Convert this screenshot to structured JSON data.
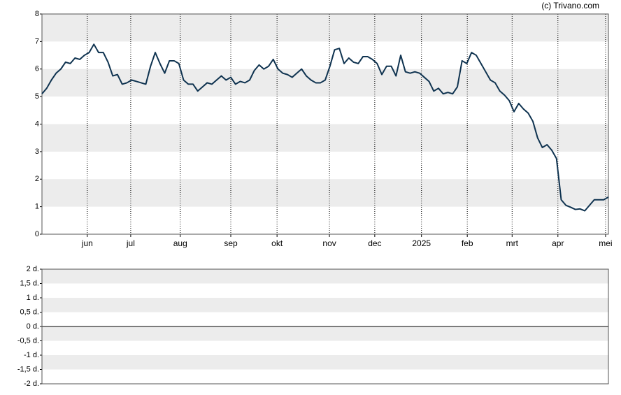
{
  "chart_data": [
    {
      "type": "line",
      "credit": "(c) Trivano.com",
      "xlim": [
        0,
        120
      ],
      "xticks": [
        {
          "value": 9.6,
          "label": "jun"
        },
        {
          "value": 18.8,
          "label": "jul"
        },
        {
          "value": 29.3,
          "label": "aug"
        },
        {
          "value": 40,
          "label": "sep"
        },
        {
          "value": 49.8,
          "label": "okt"
        },
        {
          "value": 60.9,
          "label": "nov"
        },
        {
          "value": 70.5,
          "label": "dec"
        },
        {
          "value": 80.4,
          "label": "2025"
        },
        {
          "value": 90.1,
          "label": "feb"
        },
        {
          "value": 99.6,
          "label": "mrt"
        },
        {
          "value": 109.3,
          "label": "apr"
        },
        {
          "value": 119.4,
          "label": "mei"
        }
      ],
      "ylim": [
        0,
        8
      ],
      "yticks": [
        0,
        1,
        2,
        3,
        4,
        5,
        6,
        7,
        8
      ],
      "series": [
        {
          "color": "#0f3350",
          "values": [
            5.1,
            5.3,
            5.6,
            5.85,
            6.0,
            6.25,
            6.2,
            6.4,
            6.35,
            6.5,
            6.6,
            6.9,
            6.6,
            6.6,
            6.25,
            5.75,
            5.8,
            5.45,
            5.5,
            5.6,
            5.55,
            5.5,
            5.45,
            6.1,
            6.6,
            6.2,
            5.85,
            6.3,
            6.3,
            6.2,
            5.6,
            5.45,
            5.45,
            5.2,
            5.35,
            5.5,
            5.45,
            5.6,
            5.75,
            5.6,
            5.7,
            5.45,
            5.55,
            5.5,
            5.6,
            5.95,
            6.15,
            6.0,
            6.1,
            6.35,
            6.0,
            5.85,
            5.8,
            5.7,
            5.85,
            6.0,
            5.75,
            5.6,
            5.5,
            5.5,
            5.6,
            6.1,
            6.7,
            6.75,
            6.2,
            6.4,
            6.25,
            6.2,
            6.45,
            6.45,
            6.35,
            6.2,
            5.8,
            6.1,
            6.1,
            5.75,
            6.5,
            5.9,
            5.85,
            5.9,
            5.85,
            5.7,
            5.55,
            5.2,
            5.3,
            5.1,
            5.15,
            5.1,
            5.35,
            6.3,
            6.2,
            6.6,
            6.5,
            6.2,
            5.9,
            5.6,
            5.5,
            5.2,
            5.05,
            4.85,
            4.45,
            4.75,
            4.55,
            4.4,
            4.1,
            3.5,
            3.15,
            3.25,
            3.05,
            2.75,
            1.25,
            1.05,
            0.98,
            0.9,
            0.92,
            0.85,
            1.05,
            1.25,
            1.25,
            1.25,
            1.35
          ]
        }
      ]
    },
    {
      "type": "line",
      "ylim": [
        -2,
        2
      ],
      "yticks": [
        {
          "value": 2,
          "label": "2 d."
        },
        {
          "value": 1.5,
          "label": "1,5 d."
        },
        {
          "value": 1,
          "label": "1 d."
        },
        {
          "value": 0.5,
          "label": "0,5 d."
        },
        {
          "value": 0,
          "label": "0 d."
        },
        {
          "value": -0.5,
          "label": "-0,5 d."
        },
        {
          "value": -1,
          "label": "-1 d."
        },
        {
          "value": -1.5,
          "label": "-1,5 d."
        },
        {
          "value": -2,
          "label": "-2 d."
        }
      ]
    }
  ]
}
